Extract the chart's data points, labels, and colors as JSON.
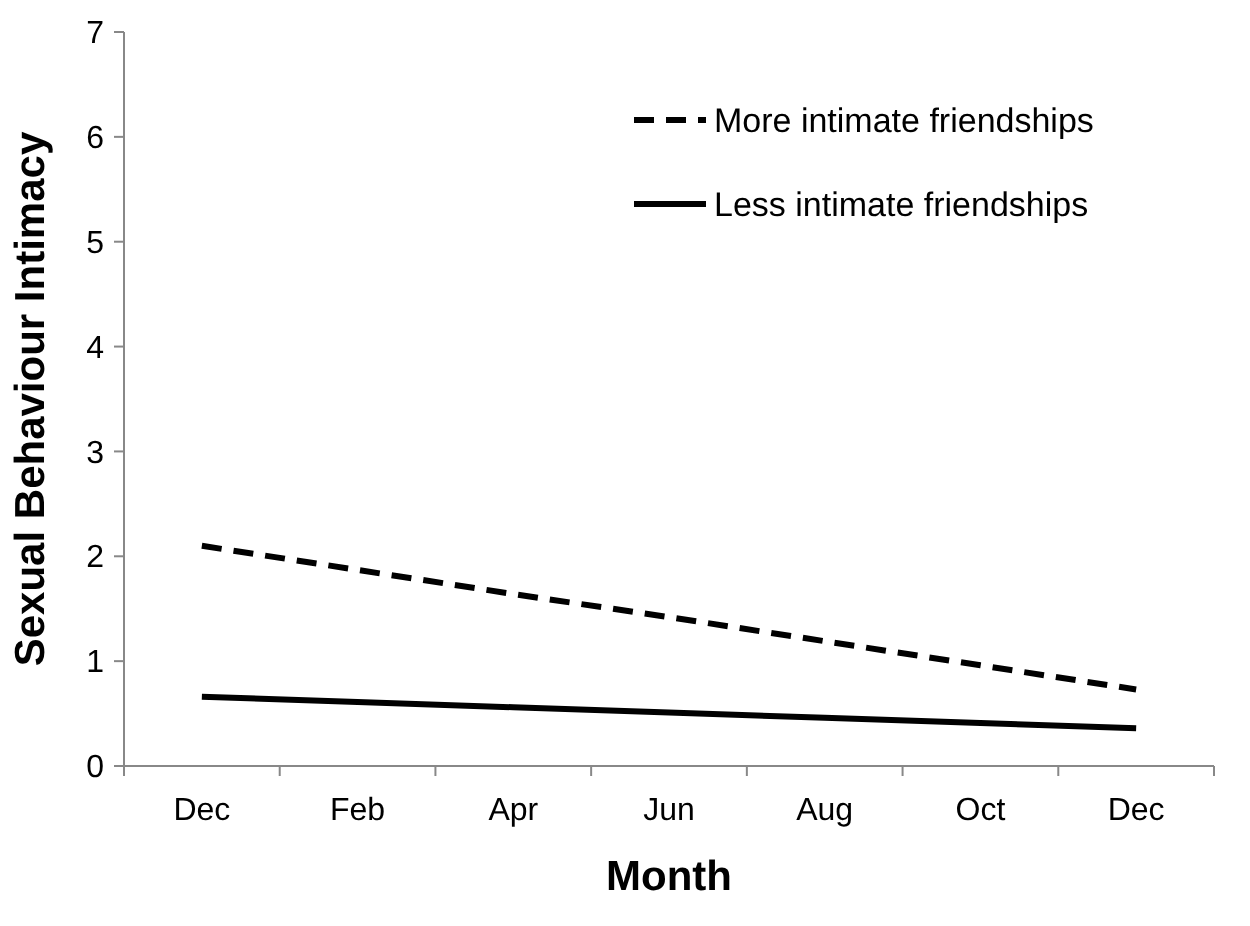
{
  "chart_data": {
    "type": "line",
    "xlabel": "Month",
    "ylabel": "Sexual Behaviour Intimacy",
    "categories": [
      "Dec",
      "Feb",
      "Apr",
      "Jun",
      "Aug",
      "Oct",
      "Dec"
    ],
    "series": [
      {
        "name": "More intimate friendships",
        "color": "#000000",
        "line_style": "dashed",
        "values": [
          2.1,
          1.87,
          1.64,
          1.42,
          1.19,
          0.96,
          0.73
        ]
      },
      {
        "name": "Less intimate friendships",
        "color": "#000000",
        "line_style": "solid",
        "values": [
          0.66,
          0.61,
          0.56,
          0.51,
          0.46,
          0.41,
          0.36
        ]
      }
    ],
    "ylim": [
      0,
      7
    ],
    "yticks": [
      0,
      1,
      2,
      3,
      4,
      5,
      6,
      7
    ],
    "grid": false,
    "legend": "top right",
    "marker": "none"
  }
}
